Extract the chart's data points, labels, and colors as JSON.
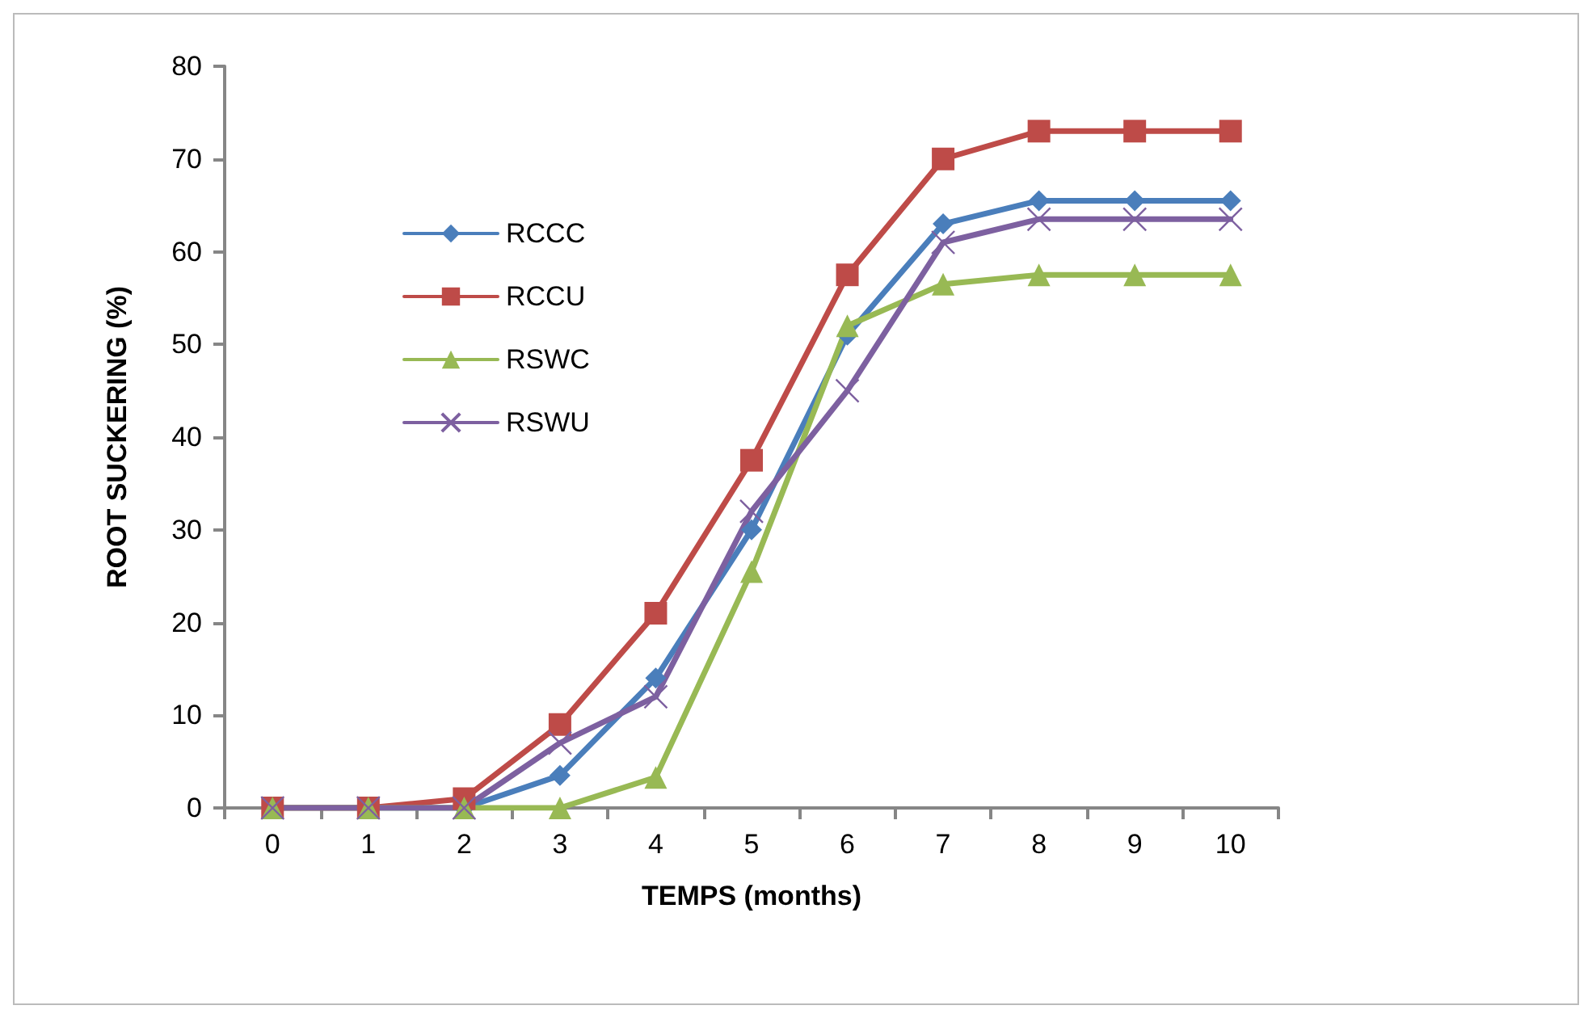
{
  "chart_data": {
    "type": "line",
    "xlabel": "TEMPS (months)",
    "ylabel": "ROOT SUCKERING (%)",
    "categories": [
      "0",
      "1",
      "2",
      "3",
      "4",
      "5",
      "6",
      "7",
      "8",
      "9",
      "10"
    ],
    "series": [
      {
        "name": "RCCC",
        "color": "#4a7ebb",
        "marker": "diamond",
        "values": [
          0,
          0,
          0,
          3.5,
          14,
          30,
          51,
          63,
          65.5,
          65.5,
          65.5
        ]
      },
      {
        "name": "RCCU",
        "color": "#be4b48",
        "marker": "square",
        "values": [
          0,
          0,
          1,
          9,
          21,
          37.5,
          57.5,
          70,
          73,
          73,
          73
        ]
      },
      {
        "name": "RSWC",
        "color": "#98b954",
        "marker": "triangle",
        "values": [
          0,
          0,
          0,
          0,
          3.3,
          25.5,
          52,
          56.5,
          57.5,
          57.5,
          57.5
        ]
      },
      {
        "name": "RSWU",
        "color": "#7d60a0",
        "marker": "cross",
        "values": [
          0,
          0,
          0,
          7,
          12,
          32,
          45,
          61,
          63.5,
          63.5,
          63.5
        ]
      }
    ],
    "ylim": [
      0,
      80
    ],
    "yticks": [
      0,
      10,
      20,
      30,
      40,
      50,
      60,
      70,
      80
    ],
    "grid": false,
    "legend": "top left",
    "line_style": "solid"
  }
}
